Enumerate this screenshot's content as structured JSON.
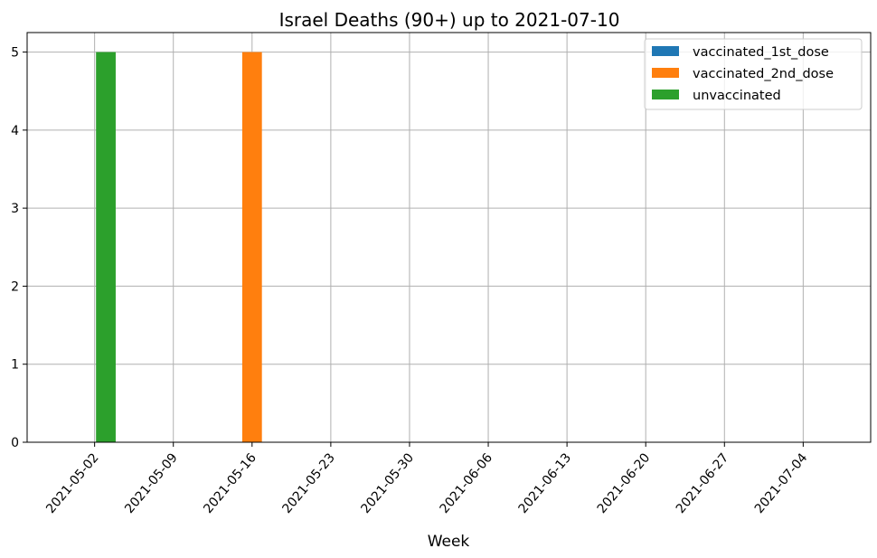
{
  "chart_data": {
    "type": "bar",
    "title": "Israel Deaths (90+) up to 2021-07-10",
    "xlabel": "Week",
    "ylabel": "",
    "ylim": [
      0,
      5.25
    ],
    "yticks": [
      "0",
      "1",
      "2",
      "3",
      "4",
      "5"
    ],
    "xticks": [
      "2021-05-02",
      "2021-05-09",
      "2021-05-16",
      "2021-05-23",
      "2021-05-30",
      "2021-06-06",
      "2021-06-13",
      "2021-06-20",
      "2021-06-27",
      "2021-07-04"
    ],
    "xlim": [
      "2021-04-26",
      "2021-07-10"
    ],
    "grid": true,
    "legend_position": "top-right",
    "series": [
      {
        "name": "vaccinated_1st_dose",
        "color": "#1f77b4",
        "points": []
      },
      {
        "name": "vaccinated_2nd_dose",
        "color": "#ff7f0e",
        "points": [
          {
            "x": "2021-05-16",
            "y": 5
          }
        ]
      },
      {
        "name": "unvaccinated",
        "color": "#2ca02c",
        "points": [
          {
            "x": "2021-05-03",
            "y": 5
          }
        ]
      }
    ]
  }
}
